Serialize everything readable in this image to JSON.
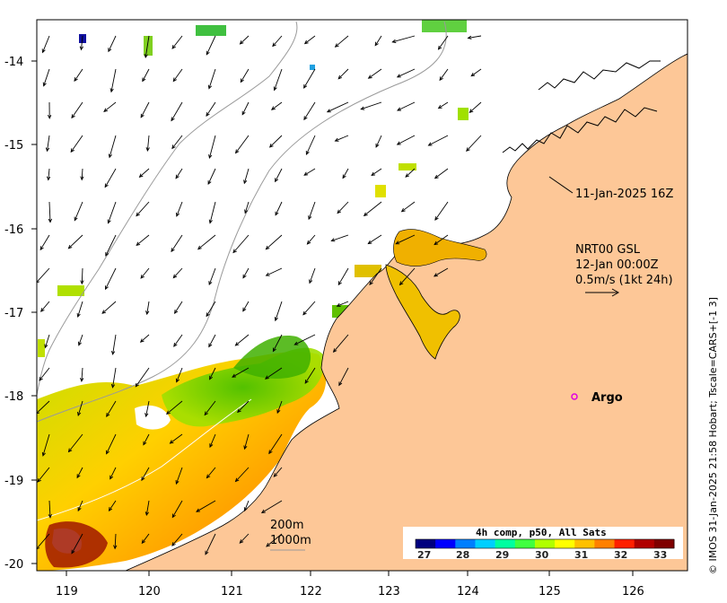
{
  "axes": {
    "x_ticks": [
      "119",
      "120",
      "121",
      "122",
      "123",
      "124",
      "125",
      "126"
    ],
    "y_ticks": [
      "-14",
      "-15",
      "-16",
      "-17",
      "-18",
      "-19",
      "-20"
    ]
  },
  "annotations": {
    "obs_time": "11-Jan-2025 16Z",
    "current_source": "NRT00 GSL",
    "current_time": "12-Jan 00:00Z",
    "current_scale": "0.5m/s (1kt 24h)",
    "argo_label": "Argo",
    "contour_200": "200m",
    "contour_1000": "1000m"
  },
  "colorbar": {
    "title": "4h comp, p50, All Sats",
    "labels": [
      "27",
      "28",
      "29",
      "30",
      "31",
      "32",
      "33"
    ],
    "colors": [
      "#00007f",
      "#0000ff",
      "#007fff",
      "#00cfff",
      "#00ffa0",
      "#40ff40",
      "#b0ff00",
      "#ffff00",
      "#ffc000",
      "#ff8000",
      "#ff2000",
      "#b00000",
      "#7f0000"
    ]
  },
  "credit": "© IMOS 31-Jan-2025 21:58 Hobart; Tscale=CARS+[-1 3]",
  "colors": {
    "land": "#fdc797",
    "ocean": "#ffffff",
    "argo_marker": "#e000e0"
  }
}
